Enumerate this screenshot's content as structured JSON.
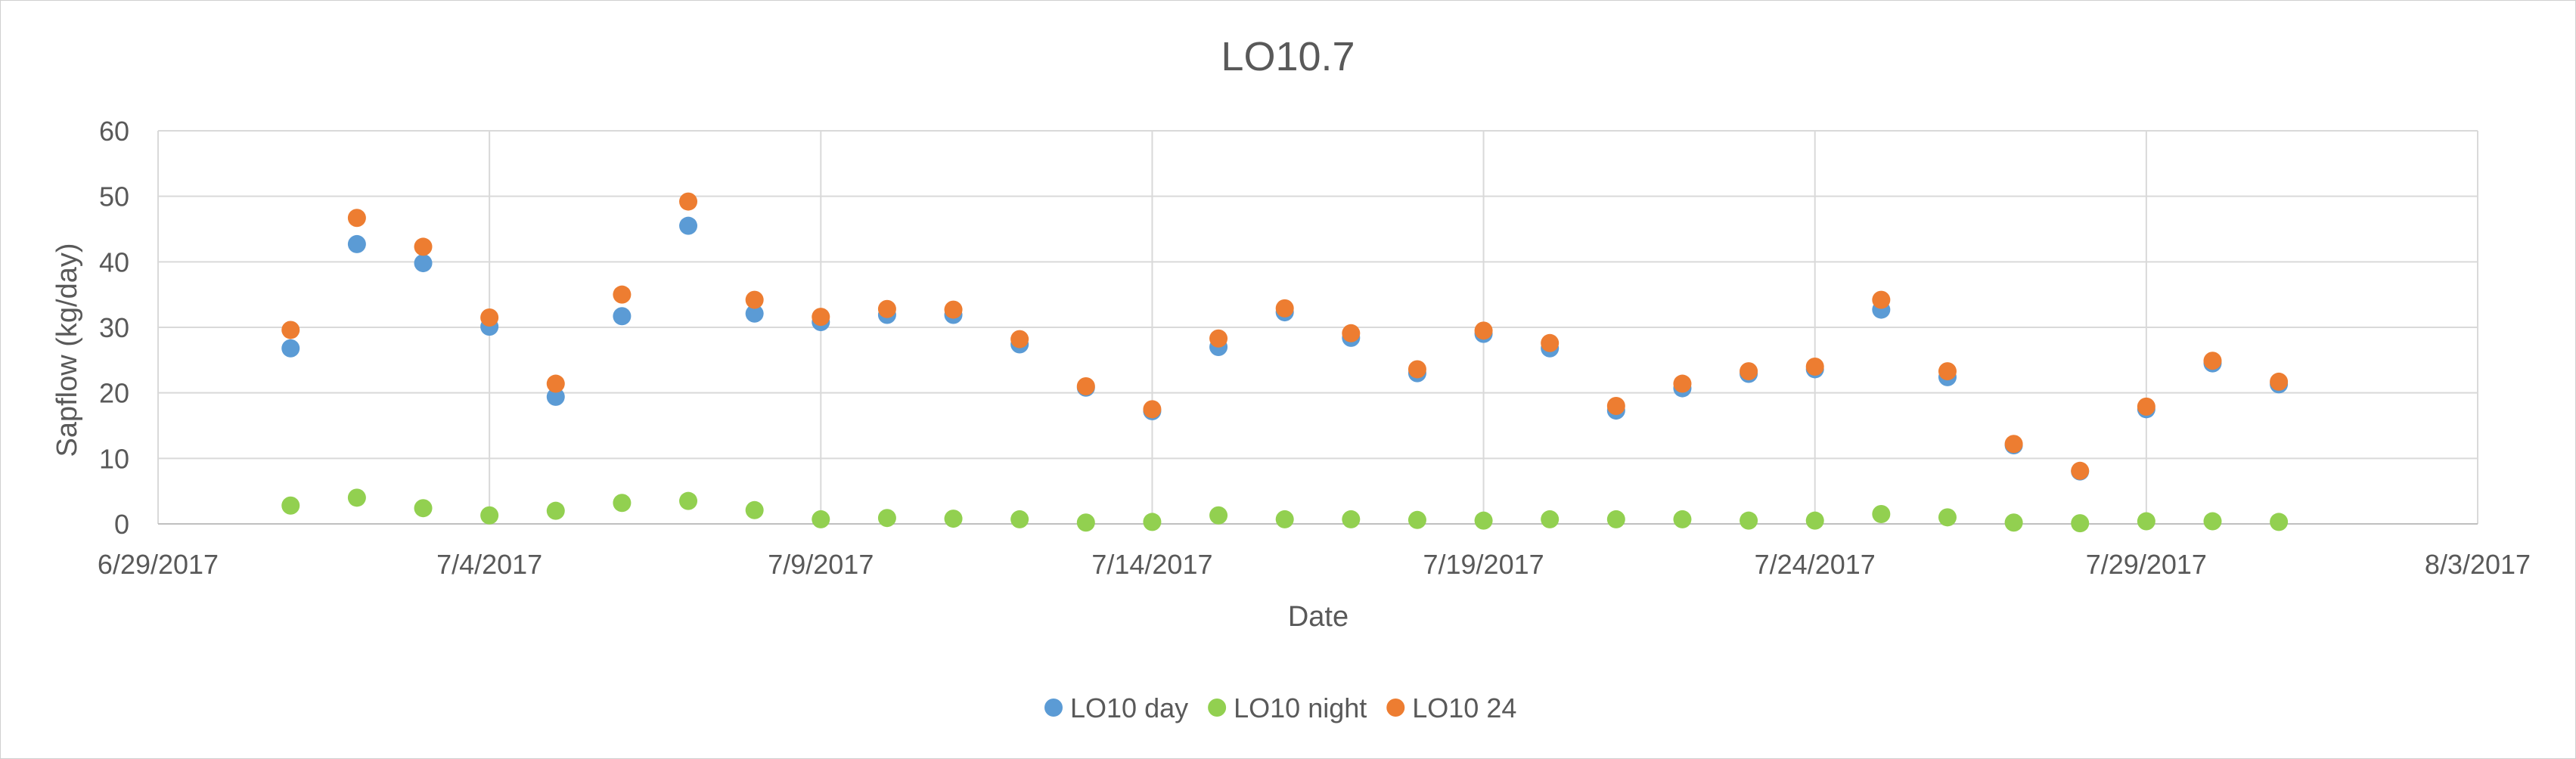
{
  "chart_data": {
    "type": "scatter",
    "title": "LO10.7",
    "xlabel": "Date",
    "ylabel": "Sapflow (kg/day)",
    "x_axis": {
      "kind": "date",
      "range": [
        "2017-06-29",
        "2017-08-03"
      ],
      "tick_labels": [
        "6/29/2017",
        "7/4/2017",
        "7/9/2017",
        "7/14/2017",
        "7/19/2017",
        "7/24/2017",
        "7/29/2017",
        "8/3/2017"
      ],
      "ticks": [
        "2017-06-29",
        "2017-07-04",
        "2017-07-09",
        "2017-07-14",
        "2017-07-19",
        "2017-07-24",
        "2017-07-29",
        "2017-08-03"
      ]
    },
    "y_axis": {
      "range": [
        0,
        60
      ],
      "ticks": [
        0,
        10,
        20,
        30,
        40,
        50,
        60
      ]
    },
    "grid": "on",
    "legend_position": "bottom",
    "x": [
      "2017-07-01",
      "2017-07-02",
      "2017-07-03",
      "2017-07-04",
      "2017-07-05",
      "2017-07-06",
      "2017-07-07",
      "2017-07-08",
      "2017-07-09",
      "2017-07-10",
      "2017-07-11",
      "2017-07-12",
      "2017-07-13",
      "2017-07-14",
      "2017-07-15",
      "2017-07-16",
      "2017-07-17",
      "2017-07-18",
      "2017-07-19",
      "2017-07-20",
      "2017-07-21",
      "2017-07-22",
      "2017-07-23",
      "2017-07-24",
      "2017-07-25",
      "2017-07-26",
      "2017-07-27",
      "2017-07-28",
      "2017-07-29",
      "2017-07-30",
      "2017-07-31"
    ],
    "series": [
      {
        "name": "LO10 day",
        "color": "#5b9bd5",
        "values": [
          26.8,
          42.7,
          39.8,
          30.1,
          19.4,
          31.7,
          45.5,
          32.1,
          30.8,
          31.9,
          31.9,
          27.4,
          20.8,
          17.2,
          27.0,
          32.3,
          28.4,
          23.0,
          29.0,
          26.8,
          17.3,
          20.7,
          22.9,
          23.6,
          32.7,
          22.4,
          12.0,
          8.0,
          17.5,
          24.5,
          21.3
        ]
      },
      {
        "name": "LO10 night",
        "color": "#92d050",
        "values": [
          2.8,
          4.0,
          2.4,
          1.3,
          2.0,
          3.2,
          3.5,
          2.1,
          0.7,
          0.9,
          0.8,
          0.7,
          0.2,
          0.3,
          1.3,
          0.7,
          0.7,
          0.6,
          0.5,
          0.7,
          0.7,
          0.7,
          0.5,
          0.5,
          1.5,
          1.0,
          0.2,
          0.1,
          0.4,
          0.4,
          0.3
        ]
      },
      {
        "name": "LO10 24",
        "color": "#ed7d31",
        "values": [
          29.6,
          46.7,
          42.3,
          31.5,
          21.4,
          35.0,
          49.2,
          34.2,
          31.6,
          32.8,
          32.7,
          28.2,
          21.0,
          17.5,
          28.3,
          32.9,
          29.1,
          23.6,
          29.5,
          27.6,
          18.0,
          21.4,
          23.3,
          24.0,
          34.2,
          23.3,
          12.2,
          8.1,
          17.9,
          24.9,
          21.7
        ]
      }
    ]
  }
}
